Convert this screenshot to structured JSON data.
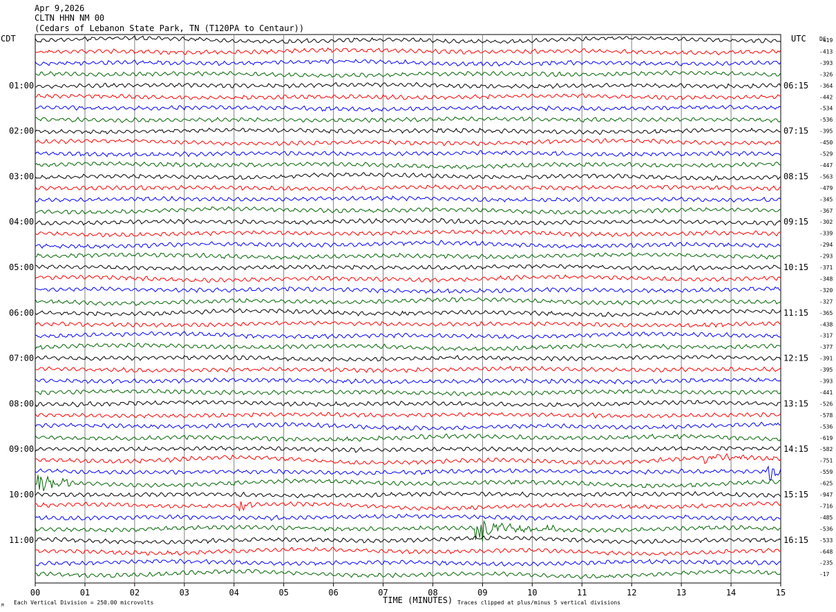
{
  "header": {
    "date": "Apr 9,2026",
    "station": "CLTN HHN NM 00",
    "location": "(Cedars of Lebanon State Park, TN (T120PA to Centaur))"
  },
  "timezones": {
    "left": "CDT",
    "right": "UTC",
    "dc_label": "DC"
  },
  "footer": {
    "scale_note": "Each Vertical Division =  250.00 microvolts",
    "time_label": "TIME (MINUTES)",
    "clip_note": "Traces clipped at plus/minus 5 vertical divisions",
    "corner_mark": "M"
  },
  "colors": [
    "#000000",
    "#ff0000",
    "#0000ff",
    "#006400"
  ],
  "chart_data": {
    "type": "line",
    "title": "",
    "xlabel": "TIME (MINUTES)",
    "ylabel": "",
    "x_ticks": [
      "00",
      "01",
      "02",
      "03",
      "04",
      "05",
      "06",
      "07",
      "08",
      "09",
      "10",
      "11",
      "12",
      "13",
      "14",
      "15"
    ],
    "xlim": [
      0,
      15
    ],
    "trace_count": 48,
    "minutes_per_trace": 15,
    "hour_labels_left": [
      "01:00",
      "02:00",
      "03:00",
      "04:00",
      "05:00",
      "06:00",
      "07:00",
      "08:00",
      "09:00",
      "10:00",
      "11:00"
    ],
    "hour_labels_right": [
      "06:15",
      "07:15",
      "08:15",
      "09:15",
      "10:15",
      "11:15",
      "12:15",
      "13:15",
      "14:15",
      "15:15",
      "16:15"
    ],
    "dc_offsets": [
      "-419",
      "-413",
      "-393",
      "-326",
      "-364",
      "-442",
      "-534",
      "-536",
      "-395",
      "-450",
      "-529",
      "-447",
      "-563",
      "-479",
      "-345",
      "-367",
      "-302",
      "-339",
      "-294",
      "-293",
      "-371",
      "-348",
      "-320",
      "-327",
      "-365",
      "-438",
      "-317",
      "-377",
      "-391",
      "-395",
      "-393",
      "-441",
      "-526",
      "-578",
      "-536",
      "-619",
      "-582",
      "-751",
      "-559",
      "-625",
      "-947",
      "-716",
      "-485",
      "-536",
      "-533",
      "-648",
      "-235",
      "-17"
    ],
    "events": [
      {
        "trace": 37,
        "minute": 13.45,
        "amplitude": 1.4,
        "duration": 0.1
      },
      {
        "trace": 37,
        "minute": 13.6,
        "amplitude": 0.5,
        "duration": 1.3
      },
      {
        "trace": 38,
        "minute": 14.7,
        "amplitude": 2.6,
        "duration": 0.3
      },
      {
        "trace": 39,
        "minute": 0.0,
        "amplitude": 1.6,
        "duration": 0.7
      },
      {
        "trace": 41,
        "minute": 4.1,
        "amplitude": 1.5,
        "duration": 0.3
      },
      {
        "trace": 43,
        "minute": 8.85,
        "amplitude": 3.2,
        "duration": 0.15
      },
      {
        "trace": 43,
        "minute": 9.0,
        "amplitude": 1.2,
        "duration": 1.0
      },
      {
        "trace": 43,
        "minute": 10.3,
        "amplitude": 1.6,
        "duration": 0.15
      }
    ]
  }
}
